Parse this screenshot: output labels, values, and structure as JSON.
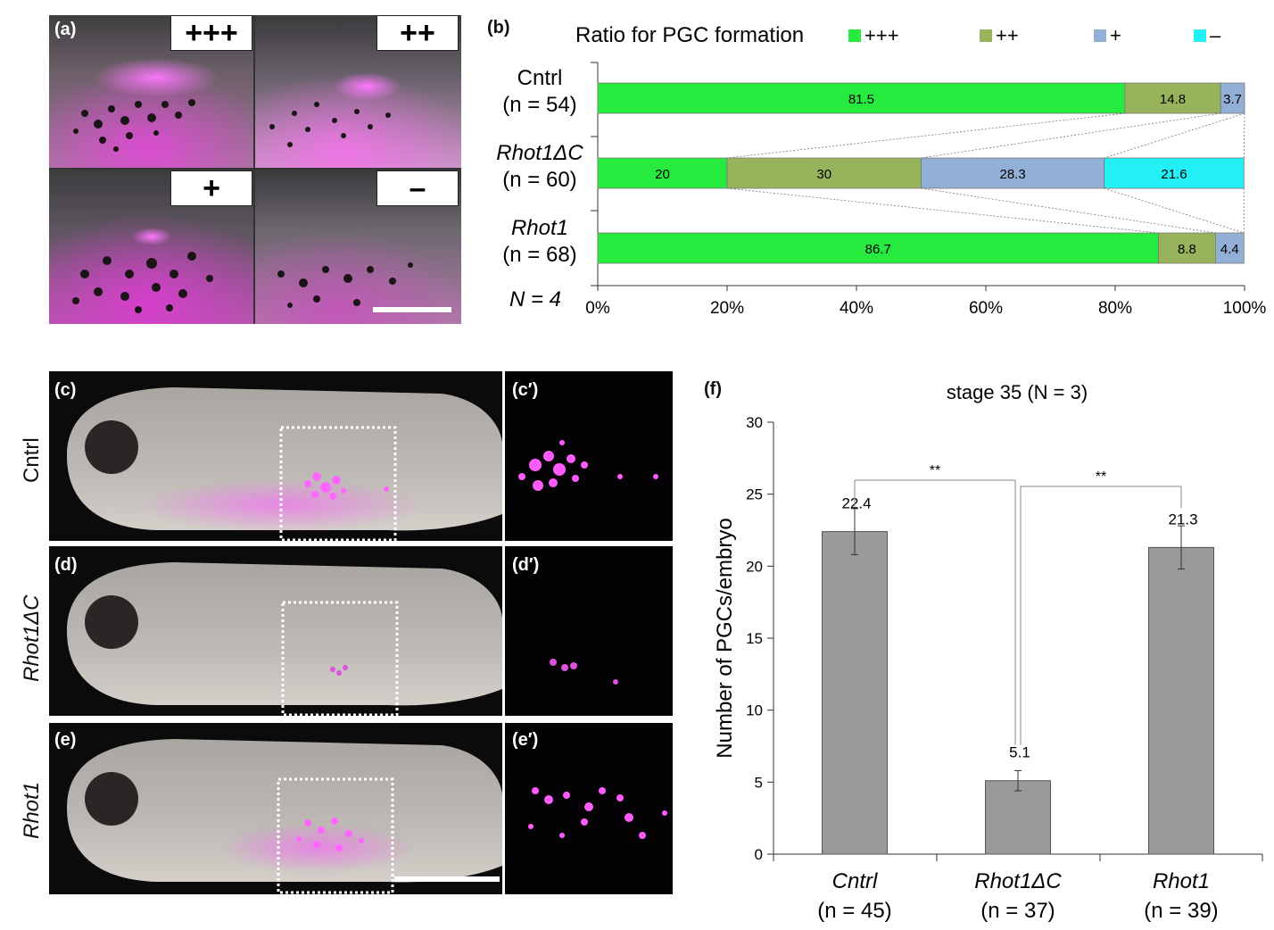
{
  "panel_a": {
    "letter": "(a)",
    "grades": [
      "+++",
      "++",
      "+",
      "–"
    ]
  },
  "panel_b": {
    "letter": "(b)",
    "legend_title": "Ratio for PGC formation",
    "n_total": "N = 4"
  },
  "panel_f": {
    "letter": "(f)"
  },
  "panel_cde": {
    "letters": [
      "(c)",
      "(c′)",
      "(d)",
      "(d′)",
      "(e)",
      "(e′)"
    ],
    "row_labels": [
      "Cntrl",
      "Rhot1ΔC",
      "Rhot1"
    ]
  },
  "colors": {
    "grade_plus3": "#26ea3e",
    "grade_plus2": "#97b45c",
    "grade_plus1": "#92b0d6",
    "grade_minus": "#22f0f4",
    "bar_gray": "#9a9a9a",
    "magenta": "#ff3cff"
  },
  "chart_data": [
    {
      "type": "bar",
      "orientation": "horizontal-stacked-100",
      "title": "Ratio for PGC formation",
      "categories": [
        {
          "name": "Cntrl",
          "n": "(n = 54)"
        },
        {
          "name": "Rhot1ΔC",
          "n": "(n = 60)"
        },
        {
          "name": "Rhot1",
          "n": "(n = 68)"
        }
      ],
      "series": [
        {
          "name": "+++",
          "values": [
            81.5,
            20,
            86.7
          ],
          "labels": [
            "81.5",
            "20",
            "86.7"
          ]
        },
        {
          "name": "++",
          "values": [
            14.8,
            30,
            8.8
          ],
          "labels": [
            "14.8",
            "30",
            "8.8"
          ]
        },
        {
          "name": "+",
          "values": [
            3.7,
            28.3,
            4.4
          ],
          "labels": [
            "3.7",
            "28.3",
            "4.4"
          ]
        },
        {
          "name": "–",
          "values": [
            0,
            21.6,
            0
          ],
          "labels": [
            "",
            "21.6",
            ""
          ]
        }
      ],
      "xlim": [
        0,
        100
      ],
      "xticks": [
        "0%",
        "20%",
        "40%",
        "60%",
        "80%",
        "100%"
      ],
      "legend": "top",
      "annotation": "N = 4"
    },
    {
      "type": "bar",
      "title": "stage 35    (N = 3)",
      "categories": [
        {
          "name": "Cntrl",
          "n": "(n = 45)"
        },
        {
          "name": "Rhot1ΔC",
          "n": "(n = 37)"
        },
        {
          "name": "Rhot1",
          "n": "(n = 39)"
        }
      ],
      "values": [
        22.4,
        5.1,
        21.3
      ],
      "value_labels": [
        "22.4",
        "5.1",
        "21.3"
      ],
      "errors": [
        1.6,
        0.7,
        1.5
      ],
      "ylabel": "Number of PGCs/embryo",
      "ylim": [
        0,
        30
      ],
      "yticks": [
        0,
        5,
        10,
        15,
        20,
        25,
        30
      ],
      "significance": [
        {
          "from": 0,
          "to": 1,
          "label": "**"
        },
        {
          "from": 1,
          "to": 2,
          "label": "**"
        }
      ]
    }
  ]
}
